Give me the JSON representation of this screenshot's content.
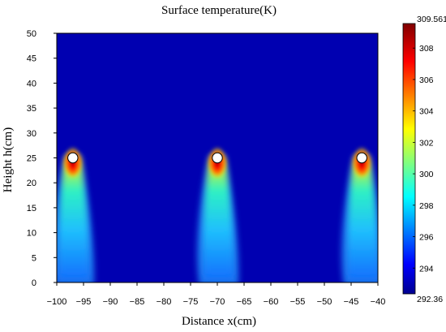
{
  "chart_data": {
    "type": "heatmap",
    "title": "Surface temperature(K)",
    "xlabel": "Distance x(cm)",
    "ylabel": "Height h(cm)",
    "xlim": [
      -100,
      -40
    ],
    "ylim": [
      0,
      50
    ],
    "xticks": [
      "−100",
      "−95",
      "−90",
      "−85",
      "−80",
      "−75",
      "−70",
      "−65",
      "−60",
      "−55",
      "−50",
      "−45",
      "−40"
    ],
    "yticks": [
      "0",
      "5",
      "10",
      "15",
      "20",
      "25",
      "30",
      "35",
      "40",
      "45",
      "50"
    ],
    "colorbar": {
      "min": 292.36,
      "max": 309.561,
      "min_label": "292.36",
      "max_label": "309.561",
      "ticks": [
        "294",
        "296",
        "298",
        "300",
        "302",
        "304",
        "306",
        "308"
      ],
      "colormap": "jet"
    },
    "background_temperature": 293.2,
    "heat_sources": [
      {
        "x": -97.0,
        "y": 25.0,
        "peak_temperature": 309.5
      },
      {
        "x": -70.0,
        "y": 25.0,
        "peak_temperature": 309.5
      },
      {
        "x": -43.0,
        "y": 25.0,
        "peak_temperature": 309.5
      }
    ],
    "grid": false
  }
}
